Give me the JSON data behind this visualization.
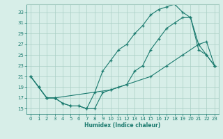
{
  "xlabel": "Humidex (Indice chaleur)",
  "bg_color": "#d7eee8",
  "grid_color": "#aacfc5",
  "line_color": "#1a7a6e",
  "xlim": [
    -0.5,
    23.5
  ],
  "ylim": [
    14,
    34.5
  ],
  "xticks": [
    0,
    1,
    2,
    3,
    4,
    5,
    6,
    7,
    8,
    9,
    10,
    11,
    12,
    13,
    14,
    15,
    16,
    17,
    18,
    19,
    20,
    21,
    22,
    23
  ],
  "yticks": [
    15,
    17,
    19,
    21,
    23,
    25,
    27,
    29,
    31,
    33
  ],
  "line1_x": [
    0,
    1,
    2,
    3,
    4,
    5,
    6,
    7,
    8,
    9,
    10,
    11,
    12,
    13,
    14,
    15,
    16,
    17,
    18,
    19,
    20,
    21,
    22,
    23
  ],
  "line1_y": [
    21,
    19,
    17,
    17,
    16,
    15.5,
    15.5,
    15,
    15,
    18,
    18.5,
    19,
    19.5,
    22,
    23,
    26,
    28,
    30,
    31,
    32,
    32,
    26,
    25,
    23
  ],
  "line2_x": [
    0,
    1,
    2,
    3,
    4,
    5,
    6,
    7,
    8,
    9,
    10,
    11,
    12,
    13,
    14,
    15,
    16,
    17,
    18,
    19,
    20,
    21,
    22,
    23
  ],
  "line2_y": [
    21,
    19,
    17,
    17,
    16,
    15.5,
    15.5,
    15,
    18,
    22,
    24,
    26,
    27,
    29,
    30.5,
    32.5,
    33.5,
    34,
    34.5,
    33,
    32,
    27,
    25,
    23
  ],
  "line3_x": [
    0,
    1,
    2,
    3,
    10,
    15,
    17,
    19,
    21,
    22,
    23
  ],
  "line3_y": [
    21,
    19,
    17,
    17,
    18.5,
    21,
    23,
    25,
    27,
    27.5,
    23
  ]
}
